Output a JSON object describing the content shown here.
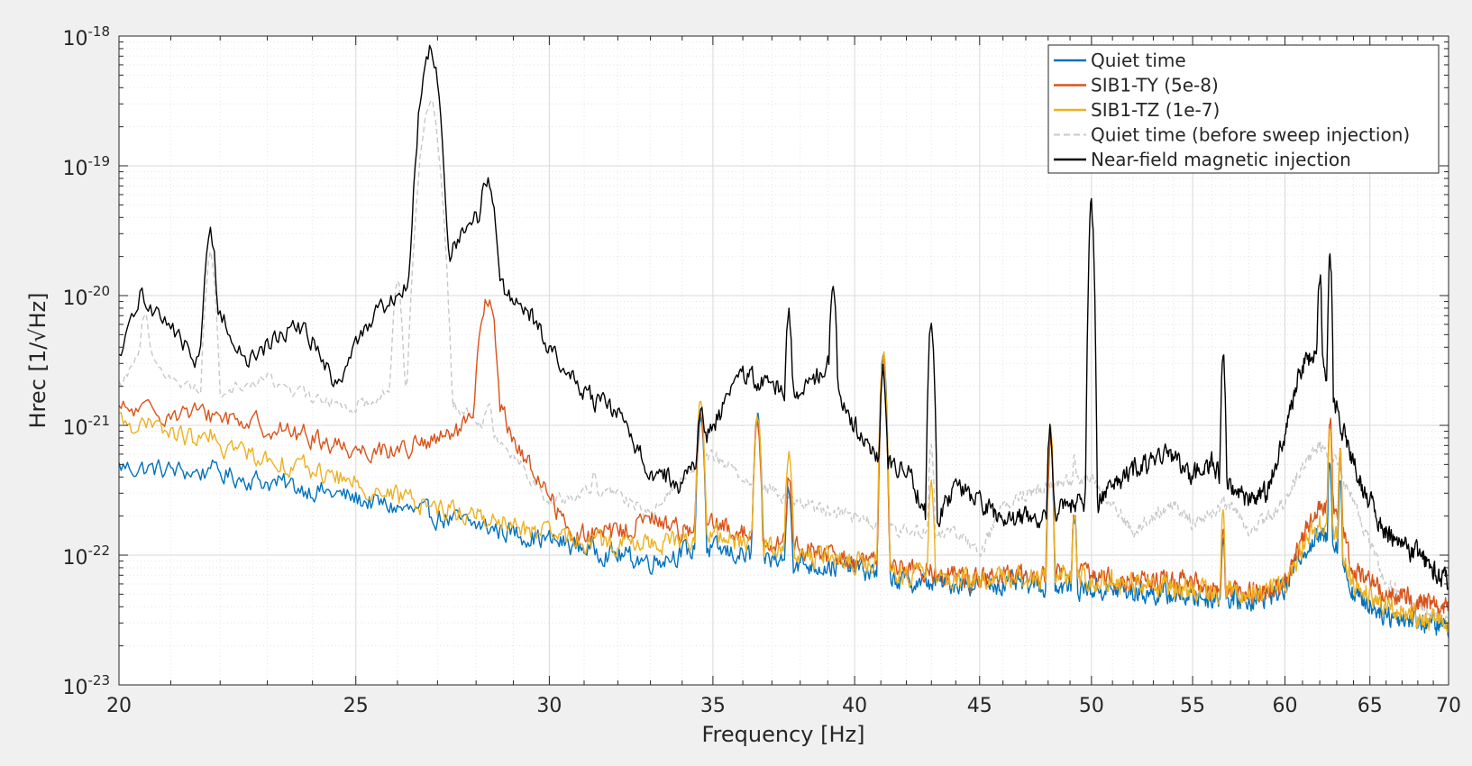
{
  "chart_data": {
    "type": "line",
    "title": "",
    "xlabel": "Frequency [Hz]",
    "ylabel": "Hrec [1/√Hz]",
    "xlim": [
      20,
      70
    ],
    "ylim": [
      1e-23,
      1e-18
    ],
    "yscale": "log",
    "xscale": "log",
    "grid": true,
    "minor_grid": true,
    "legend_position": "top-right",
    "x_ticks": [
      20,
      25,
      30,
      35,
      40,
      45,
      50,
      55,
      60,
      65,
      70
    ],
    "x_tick_labels": [
      "20",
      "25",
      "30",
      "35",
      "40",
      "45",
      "50",
      "55",
      "60",
      "65",
      "70"
    ],
    "y_ticks": [
      {
        "value": 1e-23,
        "base": "10",
        "exp": "-23"
      },
      {
        "value": 1e-22,
        "base": "10",
        "exp": "-22"
      },
      {
        "value": 1e-21,
        "base": "10",
        "exp": "-21"
      },
      {
        "value": 1e-20,
        "base": "10",
        "exp": "-20"
      },
      {
        "value": 1e-19,
        "base": "10",
        "exp": "-19"
      },
      {
        "value": 1e-18,
        "base": "10",
        "exp": "-18"
      }
    ],
    "series": [
      {
        "name": "Quiet time",
        "color": "#0072BD",
        "dash": "solid",
        "base": [
          [
            20,
            4.8e-22
          ],
          [
            22,
            4.2e-22
          ],
          [
            24,
            3.2e-22
          ],
          [
            26,
            2.3e-22
          ],
          [
            28,
            1.7e-22
          ],
          [
            30,
            1.3e-22
          ],
          [
            32,
            1e-22
          ],
          [
            33,
            9e-23
          ],
          [
            34,
            1.05e-22
          ],
          [
            35,
            1.1e-22
          ],
          [
            36,
            1e-22
          ],
          [
            38,
            8.5e-23
          ],
          [
            40,
            8e-23
          ],
          [
            42,
            6.2e-23
          ],
          [
            45,
            6e-23
          ],
          [
            47,
            6e-23
          ],
          [
            50,
            5.5e-23
          ],
          [
            55,
            4.8e-23
          ],
          [
            58,
            4.5e-23
          ],
          [
            60,
            5.5e-23
          ],
          [
            61,
            1.1e-22
          ],
          [
            62,
            1.4e-22
          ],
          [
            63,
            1.2e-22
          ],
          [
            64,
            5e-23
          ],
          [
            66,
            3.5e-23
          ],
          [
            70,
            2.8e-23
          ]
        ],
        "peaks": [
          [
            21.8,
            5.5e-22
          ],
          [
            34.6,
            1.2e-21
          ],
          [
            36.5,
            1.1e-21
          ],
          [
            37.6,
            3.5e-22
          ],
          [
            41.1,
            3.3e-21
          ],
          [
            48.1,
            9e-22
          ],
          [
            49.2,
            2e-22
          ],
          [
            56.6,
            1.5e-22
          ],
          [
            62.6,
            6e-22
          ],
          [
            63.2,
            4e-22
          ]
        ]
      },
      {
        "name": "SIB1-TY (5e-8)",
        "color": "#D95319",
        "dash": "solid",
        "base": [
          [
            20,
            1.3e-21
          ],
          [
            22,
            1.2e-21
          ],
          [
            24,
            8e-22
          ],
          [
            25,
            6.5e-22
          ],
          [
            26,
            6.5e-22
          ],
          [
            27,
            7.5e-22
          ],
          [
            27.8,
            1e-21
          ],
          [
            28.6,
            1.5e-21
          ],
          [
            29.2,
            6e-22
          ],
          [
            30,
            3e-22
          ],
          [
            30.6,
            1.4e-22
          ],
          [
            32,
            1.5e-22
          ],
          [
            33,
            1.9e-22
          ],
          [
            34,
            1.6e-22
          ],
          [
            35,
            1.7e-22
          ],
          [
            36,
            1.5e-22
          ],
          [
            38,
            1.1e-22
          ],
          [
            40,
            9e-23
          ],
          [
            42,
            8e-23
          ],
          [
            45,
            6.5e-23
          ],
          [
            48,
            7e-23
          ],
          [
            50,
            7e-23
          ],
          [
            55,
            6e-23
          ],
          [
            58,
            5e-23
          ],
          [
            60,
            6e-23
          ],
          [
            61,
            1.3e-22
          ],
          [
            62,
            2.5e-22
          ],
          [
            63,
            2e-22
          ],
          [
            64,
            8e-23
          ],
          [
            66,
            5e-23
          ],
          [
            70,
            4e-23
          ]
        ],
        "peaks": [
          [
            28.3,
            9e-21
          ],
          [
            34.6,
            1.2e-21
          ],
          [
            36.5,
            1.1e-21
          ],
          [
            37.6,
            4e-22
          ],
          [
            41.1,
            3.3e-21
          ],
          [
            48.1,
            8e-22
          ],
          [
            49.2,
            2e-22
          ],
          [
            56.6,
            1.6e-22
          ],
          [
            62.6,
            1.2e-21
          ],
          [
            63.2,
            6e-22
          ]
        ]
      },
      {
        "name": "SIB1-TZ (1e-7)",
        "color": "#EDB120",
        "dash": "solid",
        "base": [
          [
            20,
            1.1e-21
          ],
          [
            22,
            7e-22
          ],
          [
            24,
            4.5e-22
          ],
          [
            26,
            2.8e-22
          ],
          [
            28,
            2e-22
          ],
          [
            30,
            1.4e-22
          ],
          [
            32,
            1.2e-22
          ],
          [
            34,
            1.3e-22
          ],
          [
            35,
            1.4e-22
          ],
          [
            36,
            1.3e-22
          ],
          [
            38,
            1e-22
          ],
          [
            40,
            9e-23
          ],
          [
            42,
            7e-23
          ],
          [
            45,
            6.5e-23
          ],
          [
            48,
            7e-23
          ],
          [
            50,
            6.5e-23
          ],
          [
            55,
            5.5e-23
          ],
          [
            58,
            5e-23
          ],
          [
            60,
            6e-23
          ],
          [
            61,
            1.2e-22
          ],
          [
            62,
            1.8e-22
          ],
          [
            63,
            1.5e-22
          ],
          [
            64,
            6e-23
          ],
          [
            66,
            4e-23
          ],
          [
            70,
            3e-23
          ]
        ],
        "peaks": [
          [
            21.8,
            8e-22
          ],
          [
            34.6,
            1.5e-21
          ],
          [
            36.5,
            1.2e-21
          ],
          [
            37.6,
            7e-22
          ],
          [
            41.1,
            3.4e-21
          ],
          [
            43.0,
            4e-22
          ],
          [
            48.1,
            1e-21
          ],
          [
            49.2,
            2.2e-22
          ],
          [
            56.6,
            1.8e-22
          ],
          [
            62.6,
            1e-21
          ],
          [
            63.2,
            6e-22
          ]
        ]
      },
      {
        "name": "Quiet time (before sweep injection)",
        "color": "#C8C8C8",
        "dash": "dashed",
        "base": [
          [
            20,
            2e-21
          ],
          [
            20.5,
            4.5e-21
          ],
          [
            21,
            2.2e-21
          ],
          [
            22,
            1.8e-21
          ],
          [
            23,
            2.3e-21
          ],
          [
            24,
            1.6e-21
          ],
          [
            25,
            1.4e-21
          ],
          [
            26,
            2e-21
          ],
          [
            27,
            1.6e-21
          ],
          [
            28,
            1.2e-21
          ],
          [
            29,
            6e-22
          ],
          [
            30,
            2.5e-22
          ],
          [
            31,
            3e-22
          ],
          [
            32,
            3e-22
          ],
          [
            33,
            2e-22
          ],
          [
            34,
            4e-22
          ],
          [
            35,
            6e-22
          ],
          [
            36,
            4e-22
          ],
          [
            38,
            2.5e-22
          ],
          [
            40,
            2e-22
          ],
          [
            42,
            1.5e-22
          ],
          [
            44,
            1.5e-22
          ],
          [
            45,
            1e-22
          ],
          [
            46,
            2.5e-22
          ],
          [
            48,
            3.5e-22
          ],
          [
            50,
            4e-22
          ],
          [
            52,
            1.5e-22
          ],
          [
            54,
            2.5e-22
          ],
          [
            55,
            1.8e-22
          ],
          [
            57,
            2.5e-22
          ],
          [
            58,
            1.5e-22
          ],
          [
            60,
            2.5e-22
          ],
          [
            61,
            5e-22
          ],
          [
            62,
            7e-22
          ],
          [
            63,
            5e-22
          ],
          [
            64,
            2.5e-22
          ],
          [
            66,
            6e-23
          ],
          [
            70,
            3e-23
          ]
        ],
        "peaks": [
          [
            20.5,
            7e-21
          ],
          [
            21.8,
            2e-20
          ],
          [
            26.0,
            1.3e-20
          ],
          [
            26.8,
            3e-19
          ],
          [
            28.3,
            1.5e-21
          ],
          [
            31.3,
            4.5e-22
          ],
          [
            34.6,
            1.2e-21
          ],
          [
            36.5,
            1.2e-21
          ],
          [
            41.1,
            3e-21
          ],
          [
            43.0,
            7e-22
          ],
          [
            49.2,
            6e-22
          ],
          [
            56.6,
            3e-22
          ],
          [
            62.6,
            1e-21
          ]
        ]
      },
      {
        "name": "Near-field magnetic injection",
        "color": "#000000",
        "dash": "solid",
        "base": [
          [
            20,
            3e-21
          ],
          [
            20.4,
            1e-20
          ],
          [
            21,
            6e-21
          ],
          [
            21.5,
            3e-21
          ],
          [
            22,
            8e-21
          ],
          [
            22.5,
            3e-21
          ],
          [
            23,
            4e-21
          ],
          [
            23.5,
            6e-21
          ],
          [
            24,
            4.5e-21
          ],
          [
            24.5,
            2e-21
          ],
          [
            25,
            4e-21
          ],
          [
            25.5,
            8e-21
          ],
          [
            26,
            1e-20
          ],
          [
            26.5,
            1.5e-20
          ],
          [
            27,
            1.5e-20
          ],
          [
            27.5,
            2.5e-20
          ],
          [
            28,
            4e-20
          ],
          [
            28.5,
            1.5e-20
          ],
          [
            29,
            8e-21
          ],
          [
            29.5,
            7e-21
          ],
          [
            30,
            4e-21
          ],
          [
            30.5,
            2.5e-21
          ],
          [
            31,
            1.8e-21
          ],
          [
            32,
            1.2e-21
          ],
          [
            33,
            4.5e-22
          ],
          [
            34,
            3.5e-22
          ],
          [
            35,
            1e-21
          ],
          [
            36,
            2.5e-21
          ],
          [
            37,
            2e-21
          ],
          [
            38,
            1.8e-21
          ],
          [
            39,
            3e-21
          ],
          [
            40,
            1e-21
          ],
          [
            41,
            5e-22
          ],
          [
            42,
            5e-22
          ],
          [
            43,
            1.5e-22
          ],
          [
            44,
            3.5e-22
          ],
          [
            45,
            2.5e-22
          ],
          [
            46,
            1.8e-22
          ],
          [
            47,
            2e-22
          ],
          [
            48,
            2e-22
          ],
          [
            49,
            2.5e-22
          ],
          [
            50,
            2.5e-22
          ],
          [
            52,
            4.5e-22
          ],
          [
            54,
            6e-22
          ],
          [
            55,
            4e-22
          ],
          [
            56,
            5e-22
          ],
          [
            57,
            3.5e-22
          ],
          [
            58,
            2.5e-22
          ],
          [
            59,
            3e-22
          ],
          [
            60,
            9e-22
          ],
          [
            61,
            3e-21
          ],
          [
            62,
            4e-21
          ],
          [
            63,
            1.3e-21
          ],
          [
            64,
            5e-22
          ],
          [
            65,
            2.5e-22
          ],
          [
            66,
            1.5e-22
          ],
          [
            68,
            1e-22
          ],
          [
            70,
            6e-23
          ]
        ],
        "peaks": [
          [
            21.8,
            3e-20
          ],
          [
            26.8,
            8e-19
          ],
          [
            28.3,
            8e-20
          ],
          [
            34.6,
            1.5e-21
          ],
          [
            36.5,
            2e-21
          ],
          [
            37.6,
            7e-21
          ],
          [
            39.2,
            1.3e-20
          ],
          [
            41.1,
            2.5e-21
          ],
          [
            43.0,
            6.5e-21
          ],
          [
            48.1,
            1e-21
          ],
          [
            50.0,
            4.5e-20
          ],
          [
            56.6,
            3.3e-21
          ],
          [
            62.0,
            1.5e-20
          ],
          [
            62.6,
            2e-20
          ]
        ]
      }
    ]
  }
}
